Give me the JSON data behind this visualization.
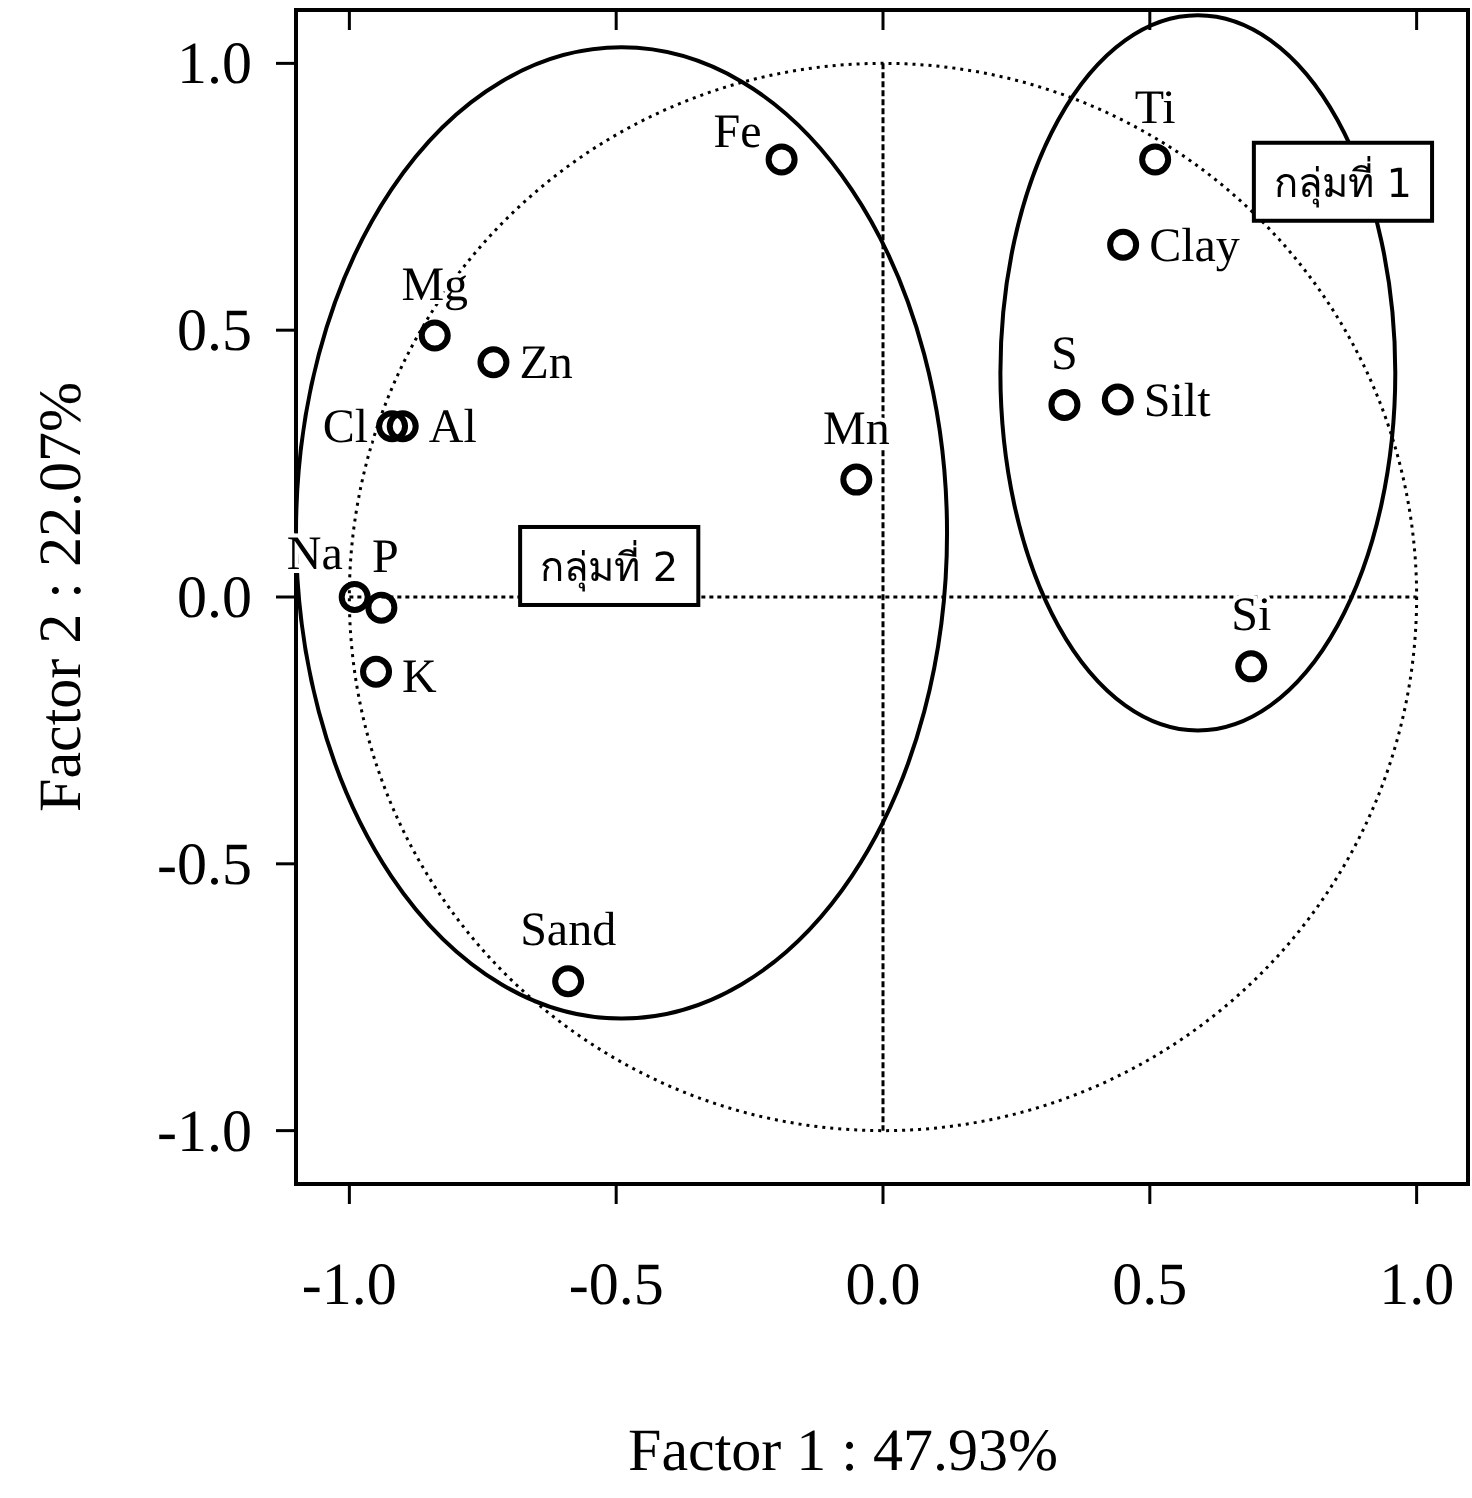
{
  "chart_data": {
    "type": "scatter",
    "xlabel": "Factor 1 : 47.93%",
    "ylabel": "Factor 2 : 22.07%",
    "xlim": [
      -1.1,
      1.1
    ],
    "ylim": [
      -1.1,
      1.1
    ],
    "xticks": [
      {
        "value": -1,
        "label": "-1.0"
      },
      {
        "value": -0.5,
        "label": "-0.5"
      },
      {
        "value": 0,
        "label": "0.0"
      },
      {
        "value": 0.5,
        "label": "0.5"
      },
      {
        "value": 1,
        "label": "1.0"
      }
    ],
    "yticks": [
      {
        "value": -1,
        "label": "-1.0"
      },
      {
        "value": -0.5,
        "label": "-0.5"
      },
      {
        "value": 0,
        "label": "0.0"
      },
      {
        "value": 0.5,
        "label": "0.5"
      },
      {
        "value": 1,
        "label": "1.0"
      }
    ],
    "marker": "circle",
    "ref_lines": [
      {
        "axis": "x",
        "value": 0,
        "line_style": "dashed"
      },
      {
        "axis": "y",
        "value": 0,
        "line_style": "dotted"
      }
    ],
    "annotations": [
      "กลุ่มที่ 1",
      "กลุ่มที่ 2"
    ],
    "series": [
      {
        "name": "Fe",
        "color": "#000000",
        "x": [
          -0.19
        ],
        "values": [
          0.82
        ]
      },
      {
        "name": "Mg",
        "color": "#000000",
        "x": [
          -0.84
        ],
        "values": [
          0.49
        ]
      },
      {
        "name": "Zn",
        "color": "#000000",
        "x": [
          -0.73
        ],
        "values": [
          0.44
        ]
      },
      {
        "name": "Cl",
        "color": "#000000",
        "x": [
          -0.92
        ],
        "values": [
          0.32
        ]
      },
      {
        "name": "Al",
        "color": "#000000",
        "x": [
          -0.9
        ],
        "values": [
          0.32
        ]
      },
      {
        "name": "Mn",
        "color": "#000000",
        "x": [
          -0.05
        ],
        "values": [
          0.22
        ]
      },
      {
        "name": "Na",
        "color": "#000000",
        "x": [
          -0.99
        ],
        "values": [
          0.0
        ]
      },
      {
        "name": "P",
        "color": "#000000",
        "x": [
          -0.94
        ],
        "values": [
          -0.02
        ]
      },
      {
        "name": "K",
        "color": "#000000",
        "x": [
          -0.95
        ],
        "values": [
          -0.14
        ]
      },
      {
        "name": "Sand",
        "color": "#000000",
        "x": [
          -0.59
        ],
        "values": [
          -0.72
        ]
      },
      {
        "name": "Ti",
        "color": "#000000",
        "x": [
          0.51
        ],
        "values": [
          0.82
        ]
      },
      {
        "name": "Clay",
        "color": "#000000",
        "x": [
          0.45
        ],
        "values": [
          0.66
        ]
      },
      {
        "name": "S",
        "color": "#000000",
        "x": [
          0.34
        ],
        "values": [
          0.36
        ]
      },
      {
        "name": "Silt",
        "color": "#000000",
        "x": [
          0.44
        ],
        "values": [
          0.37
        ]
      },
      {
        "name": "Si",
        "color": "#000000",
        "x": [
          0.69
        ],
        "values": [
          -0.13
        ]
      }
    ]
  }
}
